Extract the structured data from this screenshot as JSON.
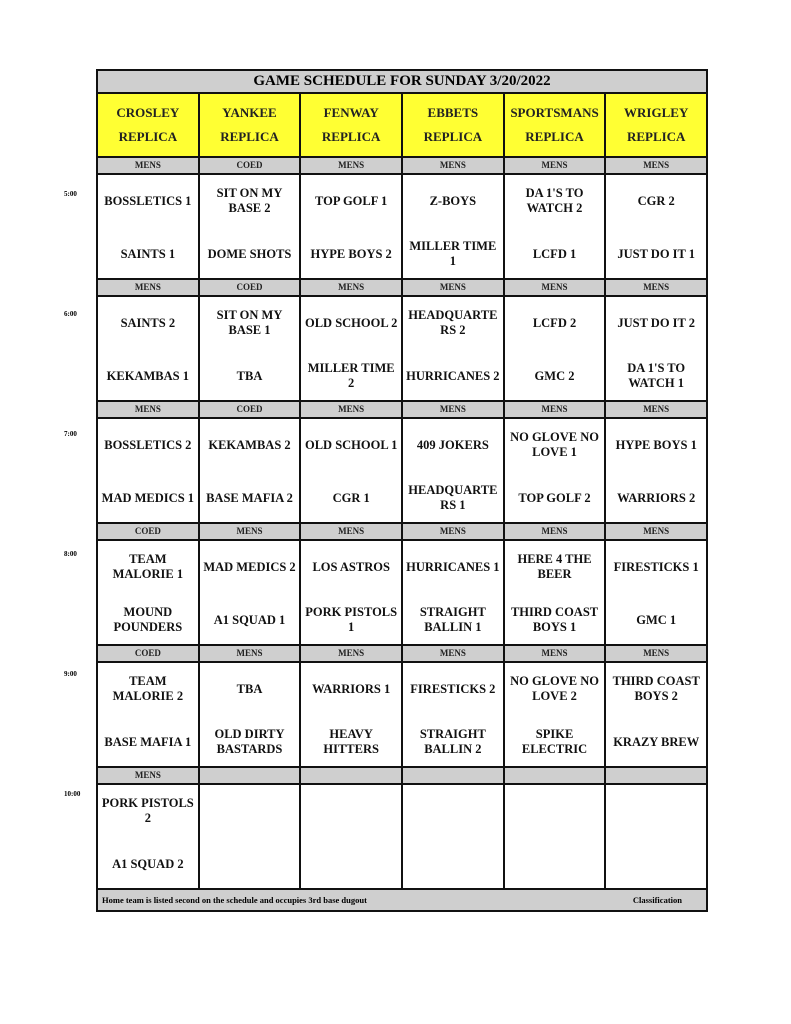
{
  "title": "GAME SCHEDULE FOR SUNDAY 3/20/2022",
  "fields": [
    {
      "name": "CROSLEY",
      "sub": "REPLICA"
    },
    {
      "name": "YANKEE",
      "sub": "REPLICA"
    },
    {
      "name": "FENWAY",
      "sub": "REPLICA"
    },
    {
      "name": "EBBETS",
      "sub": "REPLICA"
    },
    {
      "name": "SPORTSMANS",
      "sub": "REPLICA"
    },
    {
      "name": "WRIGLEY",
      "sub": "REPLICA"
    }
  ],
  "slots": [
    {
      "time": "5:00",
      "games": [
        {
          "class": "MENS",
          "away": "BOSSLETICS 1",
          "home": "SAINTS 1"
        },
        {
          "class": "COED",
          "away": "SIT ON MY BASE 2",
          "home": "DOME SHOTS"
        },
        {
          "class": "MENS",
          "away": "TOP GOLF 1",
          "home": "HYPE BOYS 2"
        },
        {
          "class": "MENS",
          "away": "Z-BOYS",
          "home": "MILLER TIME 1"
        },
        {
          "class": "MENS",
          "away": "DA 1'S TO WATCH 2",
          "home": "LCFD 1"
        },
        {
          "class": "MENS",
          "away": "CGR 2",
          "home": "JUST DO IT 1"
        }
      ]
    },
    {
      "time": "6:00",
      "games": [
        {
          "class": "MENS",
          "away": "SAINTS 2",
          "home": "KEKAMBAS 1"
        },
        {
          "class": "COED",
          "away": "SIT ON MY BASE 1",
          "home": "TBA"
        },
        {
          "class": "MENS",
          "away": "OLD SCHOOL 2",
          "home": "MILLER TIME 2"
        },
        {
          "class": "MENS",
          "away": "HEADQUARTE RS 2",
          "home": "HURRICANES 2"
        },
        {
          "class": "MENS",
          "away": "LCFD 2",
          "home": "GMC 2"
        },
        {
          "class": "MENS",
          "away": "JUST DO IT 2",
          "home": "DA 1'S TO WATCH 1"
        }
      ]
    },
    {
      "time": "7:00",
      "games": [
        {
          "class": "MENS",
          "away": "BOSSLETICS 2",
          "home": "MAD MEDICS 1"
        },
        {
          "class": "COED",
          "away": "KEKAMBAS 2",
          "home": "BASE MAFIA 2"
        },
        {
          "class": "MENS",
          "away": "OLD SCHOOL 1",
          "home": "CGR 1"
        },
        {
          "class": "MENS",
          "away": "409 JOKERS",
          "home": "HEADQUARTE RS 1"
        },
        {
          "class": "MENS",
          "away": "NO GLOVE NO LOVE 1",
          "home": "TOP GOLF 2"
        },
        {
          "class": "MENS",
          "away": "HYPE BOYS 1",
          "home": "WARRIORS 2"
        }
      ]
    },
    {
      "time": "8:00",
      "games": [
        {
          "class": "COED",
          "away": "TEAM MALORIE 1",
          "home": "MOUND POUNDERS"
        },
        {
          "class": "MENS",
          "away": "MAD MEDICS 2",
          "home": "A1 SQUAD 1"
        },
        {
          "class": "MENS",
          "away": "LOS ASTROS",
          "home": "PORK PISTOLS 1"
        },
        {
          "class": "MENS",
          "away": "HURRICANES 1",
          "home": "STRAIGHT BALLIN 1"
        },
        {
          "class": "MENS",
          "away": "HERE 4 THE BEER",
          "home": "THIRD COAST BOYS 1"
        },
        {
          "class": "MENS",
          "away": "FIRESTICKS 1",
          "home": "GMC 1"
        }
      ]
    },
    {
      "time": "9:00",
      "games": [
        {
          "class": "COED",
          "away": "TEAM MALORIE 2",
          "home": "BASE MAFIA 1"
        },
        {
          "class": "MENS",
          "away": "TBA",
          "home": "OLD DIRTY BASTARDS"
        },
        {
          "class": "MENS",
          "away": "WARRIORS 1",
          "home": "HEAVY HITTERS"
        },
        {
          "class": "MENS",
          "away": "FIRESTICKS 2",
          "home": "STRAIGHT BALLIN 2"
        },
        {
          "class": "MENS",
          "away": "NO GLOVE NO LOVE 2",
          "home": "SPIKE ELECTRIC"
        },
        {
          "class": "MENS",
          "away": "THIRD COAST BOYS 2",
          "home": "KRAZY BREW"
        }
      ]
    },
    {
      "time": "10:00",
      "games": [
        {
          "class": "MENS",
          "away": "PORK PISTOLS 2",
          "home": "A1 SQUAD 2"
        },
        {
          "class": "",
          "away": "",
          "home": ""
        },
        {
          "class": "",
          "away": "",
          "home": ""
        },
        {
          "class": "",
          "away": "",
          "home": ""
        },
        {
          "class": "",
          "away": "",
          "home": ""
        },
        {
          "class": "",
          "away": "",
          "home": ""
        }
      ]
    }
  ],
  "footer": {
    "note": "Home team is listed second on the schedule and occupies 3rd base dugout",
    "right": "Classification"
  },
  "colors": {
    "header_yellow": "#ffff33",
    "band_gray": "#cfcfcf",
    "border": "#111111"
  }
}
